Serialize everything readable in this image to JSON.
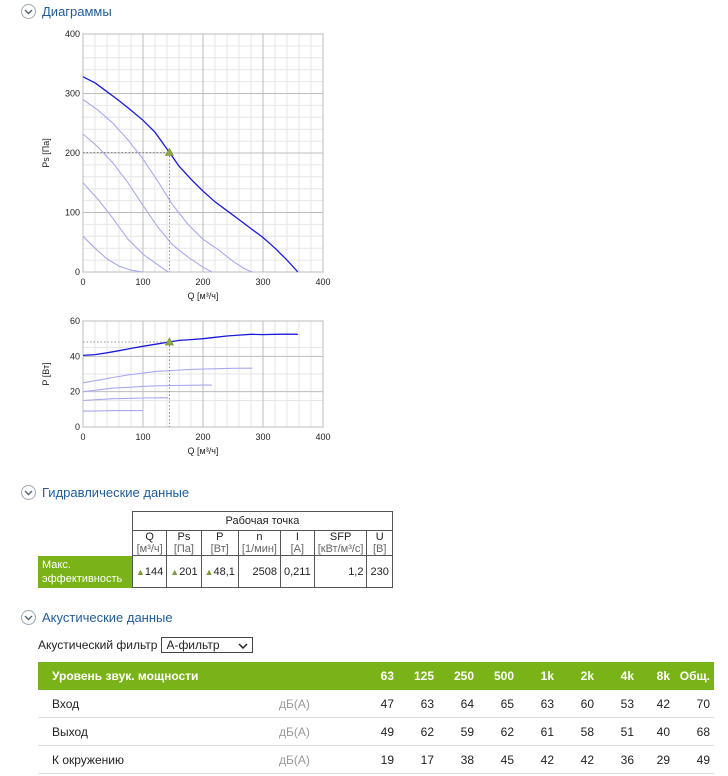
{
  "sections": {
    "diagrams": "Диаграммы",
    "hydraulic": "Гидравлические данные",
    "acoustic": "Акустические данные"
  },
  "icons": {
    "section_toggle": "chevron-down-icon",
    "operating_point": "triangle-marker-icon"
  },
  "colors": {
    "main_curve": "#1a1adb",
    "aux_curve": "#a9a9f0",
    "accent_green": "#7ab317",
    "title_blue": "#1f5c99"
  },
  "chart_data": [
    {
      "type": "line",
      "xlabel": "Q [м³/ч]",
      "ylabel": "Ps [Па]",
      "xlim": [
        0,
        400
      ],
      "ylim": [
        0,
        400
      ],
      "xticks": [
        "0",
        "100",
        "200",
        "300",
        "400"
      ],
      "yticks": [
        "0",
        "100",
        "200",
        "300",
        "400"
      ],
      "grid": true,
      "series": [
        {
          "role": "main",
          "x": [
            0,
            20,
            40,
            60,
            80,
            100,
            120,
            144,
            160,
            180,
            200,
            220,
            240,
            260,
            280,
            300,
            320,
            340,
            358
          ],
          "y": [
            328,
            318,
            303,
            288,
            272,
            255,
            235,
            201,
            178,
            156,
            136,
            118,
            103,
            88,
            73,
            58,
            40,
            20,
            0
          ]
        },
        {
          "role": "aux",
          "x": [
            0,
            25,
            50,
            75,
            100,
            125,
            150,
            175,
            200,
            225,
            250,
            270,
            282
          ],
          "y": [
            290,
            272,
            250,
            222,
            190,
            152,
            112,
            80,
            55,
            38,
            18,
            5,
            0
          ]
        },
        {
          "role": "aux",
          "x": [
            0,
            25,
            50,
            75,
            100,
            125,
            150,
            175,
            200,
            215
          ],
          "y": [
            232,
            210,
            183,
            150,
            112,
            75,
            45,
            25,
            8,
            0
          ]
        },
        {
          "role": "aux",
          "x": [
            0,
            25,
            50,
            75,
            100,
            125,
            142
          ],
          "y": [
            150,
            122,
            90,
            55,
            30,
            12,
            0
          ]
        },
        {
          "role": "aux",
          "x": [
            0,
            20,
            40,
            60,
            80,
            100
          ],
          "y": [
            60,
            40,
            22,
            10,
            3,
            0
          ]
        }
      ],
      "operating_point": {
        "x": 144,
        "y": 201
      }
    },
    {
      "type": "line",
      "xlabel": "Q [м³/ч]",
      "ylabel": "P [Вт]",
      "xlim": [
        0,
        400
      ],
      "ylim": [
        0,
        60
      ],
      "xticks": [
        "0",
        "100",
        "200",
        "300",
        "400"
      ],
      "yticks": [
        "0",
        "20",
        "40",
        "60"
      ],
      "grid": true,
      "series": [
        {
          "role": "main",
          "x": [
            0,
            20,
            40,
            60,
            80,
            100,
            120,
            144,
            160,
            180,
            200,
            220,
            240,
            260,
            280,
            300,
            320,
            340,
            358
          ],
          "y": [
            40.5,
            41,
            42,
            43.2,
            44.5,
            45.7,
            46.8,
            48.1,
            49,
            49.5,
            50,
            50.8,
            51.5,
            52,
            52.5,
            52.3,
            52.5,
            52.6,
            52.5
          ]
        },
        {
          "role": "aux",
          "x": [
            0,
            25,
            50,
            75,
            100,
            125,
            150,
            175,
            200,
            225,
            250,
            282
          ],
          "y": [
            25,
            26.5,
            28,
            29.5,
            30.5,
            31.5,
            32,
            32.5,
            32.8,
            33,
            33.2,
            33.3
          ]
        },
        {
          "role": "aux",
          "x": [
            0,
            25,
            50,
            75,
            100,
            125,
            150,
            175,
            200,
            215
          ],
          "y": [
            20,
            21,
            22,
            22.5,
            23,
            23.3,
            23.5,
            23.6,
            23.7,
            23.7
          ]
        },
        {
          "role": "aux",
          "x": [
            0,
            25,
            50,
            75,
            100,
            125,
            142
          ],
          "y": [
            15,
            15.5,
            16,
            16.2,
            16.4,
            16.5,
            16.5
          ]
        },
        {
          "role": "aux",
          "x": [
            0,
            20,
            40,
            60,
            80,
            100
          ],
          "y": [
            9,
            9,
            9.2,
            9.3,
            9.3,
            9.3
          ]
        }
      ],
      "operating_point": {
        "x": 144,
        "y": 48.1
      }
    }
  ],
  "hydraulic": {
    "group_header": "Рабочая точка",
    "columns": [
      {
        "name": "Q",
        "unit": "[м³/ч]"
      },
      {
        "name": "Ps",
        "unit": "[Па]"
      },
      {
        "name": "P",
        "unit": "[Вт]"
      },
      {
        "name": "n",
        "unit": "[1/мин]"
      },
      {
        "name": "I",
        "unit": "[A]"
      },
      {
        "name": "SFP",
        "unit": "[кВт/м³/с]"
      },
      {
        "name": "U",
        "unit": "[В]"
      }
    ],
    "row_label_line1": "Макс.",
    "row_label_line2": "эффективность",
    "marker": "▲",
    "values": [
      "144",
      "201",
      "48,1",
      "2508",
      "0,211",
      "1,2",
      "230"
    ]
  },
  "acoustic": {
    "filter_label": "Акустический фильтр",
    "filter_value": "A-фильтр",
    "header": [
      "Уровень звук. мощности",
      "63",
      "125",
      "250",
      "500",
      "1k",
      "2k",
      "4k",
      "8k",
      "Общ."
    ],
    "unit": "дБ(A)",
    "rows": [
      {
        "label": "Вход",
        "values": [
          "47",
          "63",
          "64",
          "65",
          "63",
          "60",
          "53",
          "42",
          "70"
        ]
      },
      {
        "label": "Выход",
        "values": [
          "49",
          "62",
          "59",
          "62",
          "61",
          "58",
          "51",
          "40",
          "68"
        ]
      },
      {
        "label": "К окружению",
        "values": [
          "19",
          "17",
          "38",
          "45",
          "42",
          "42",
          "36",
          "29",
          "49"
        ]
      }
    ]
  }
}
